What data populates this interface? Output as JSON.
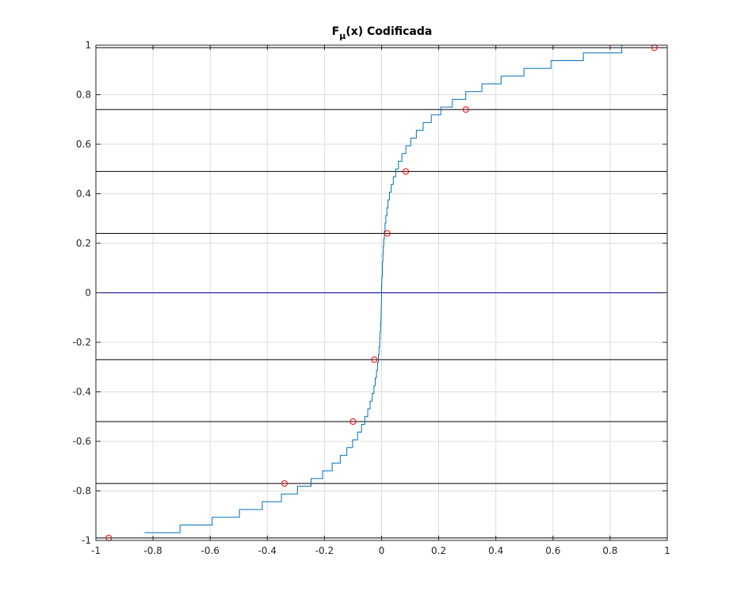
{
  "chart_data": {
    "type": "line",
    "title": "F",
    "title_subscript": "μ",
    "title_rest": "(x) Codificada",
    "xlim": [
      -1,
      1
    ],
    "ylim": [
      -1,
      1
    ],
    "xticks": [
      -1,
      -0.8,
      -0.6,
      -0.4,
      -0.2,
      0,
      0.2,
      0.4,
      0.6,
      0.8,
      1
    ],
    "xtick_labels": [
      "-1",
      "-0.8",
      "-0.6",
      "-0.4",
      "-0.2",
      "0",
      "0.2",
      "0.4",
      "0.6",
      "0.8",
      "1"
    ],
    "yticks": [
      -1,
      -0.8,
      -0.6,
      -0.4,
      -0.2,
      0,
      0.2,
      0.4,
      0.6,
      0.8,
      1
    ],
    "ytick_labels": [
      "-1",
      "-0.8",
      "-0.6",
      "-0.4",
      "-0.2",
      "0",
      "0.2",
      "0.4",
      "0.6",
      "0.8",
      "1"
    ],
    "grid": true,
    "curve": {
      "mu": 255,
      "x_range": [
        -0.83,
        0.96
      ],
      "y_step": 0.03125,
      "color": "#0072BD"
    },
    "quantization_levels": [
      -0.99,
      -0.77,
      -0.52,
      -0.27,
      0,
      0.24,
      0.49,
      0.74,
      0.99
    ],
    "quantization_line_color": "#000000",
    "zero_line_color": "#00008B",
    "markers": {
      "color": "#FF0000",
      "shape": "circle",
      "points": [
        {
          "x": -0.955,
          "y": -0.99
        },
        {
          "x": -0.34,
          "y": -0.77
        },
        {
          "x": -0.1,
          "y": -0.52
        },
        {
          "x": -0.025,
          "y": -0.27
        },
        {
          "x": 0.02,
          "y": 0.24
        },
        {
          "x": 0.085,
          "y": 0.49
        },
        {
          "x": 0.295,
          "y": 0.74
        },
        {
          "x": 0.955,
          "y": 0.99
        }
      ]
    }
  }
}
